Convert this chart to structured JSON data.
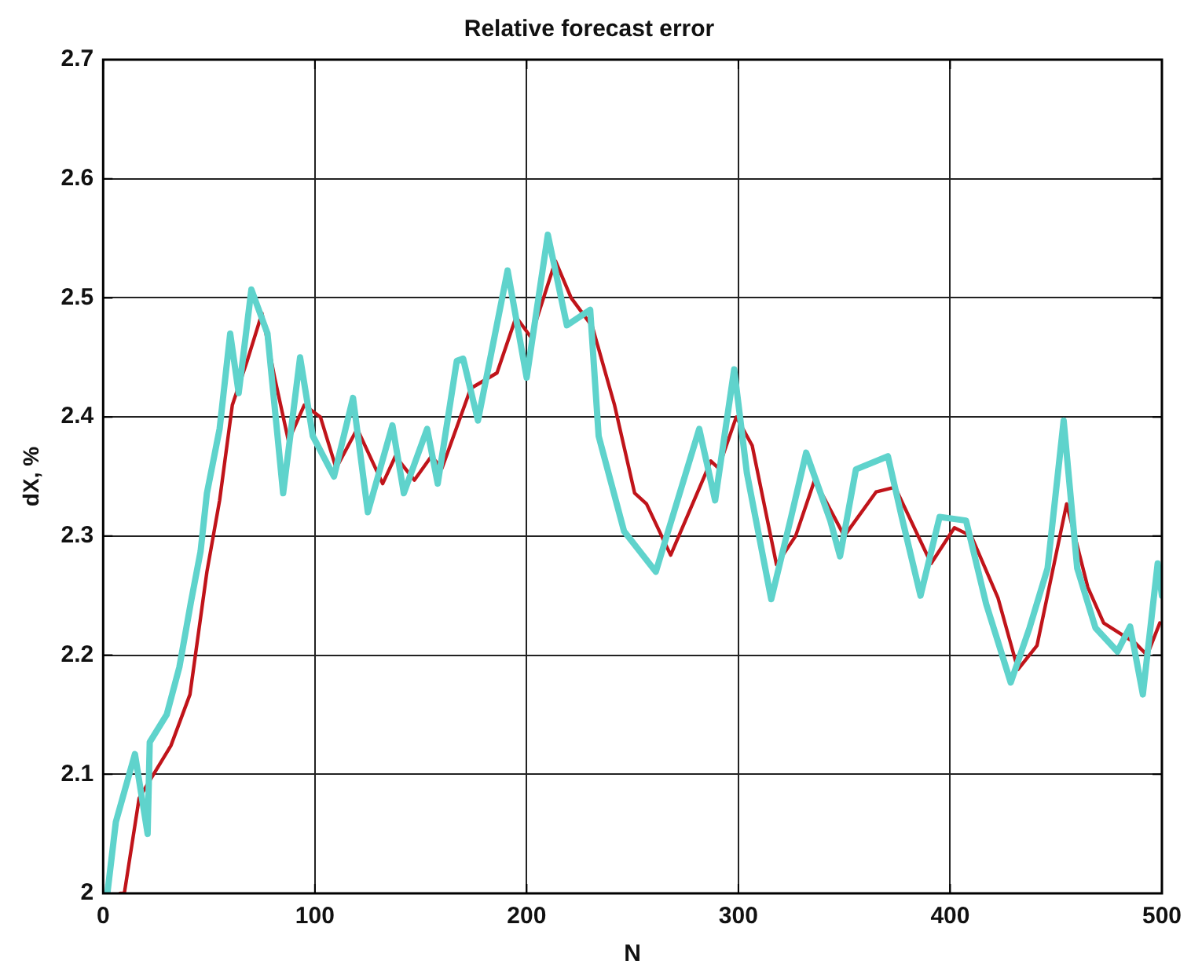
{
  "chart_data": {
    "type": "line",
    "title": "Relative forecast error",
    "xlabel": "N",
    "ylabel": "dX, %",
    "xlim": [
      0,
      500
    ],
    "xticks": [
      0,
      100,
      200,
      300,
      400,
      500
    ],
    "ylim": [
      2,
      2.7
    ],
    "yticks": [
      2,
      2.1,
      2.2,
      2.3,
      2.4,
      2.5,
      2.6,
      2.7
    ],
    "grid": true,
    "marker": "none",
    "line_style": "solid",
    "series": [
      {
        "color": "#5fd3cc",
        "x": [
          2,
          6,
          15,
          21,
          22,
          30,
          36,
          41.5,
          46,
          49,
          55,
          60,
          64,
          70,
          77.6,
          85,
          93,
          99,
          109,
          118,
          125,
          136.6,
          142,
          153,
          158,
          167,
          170,
          177,
          191,
          200,
          210,
          219,
          230,
          234,
          246,
          261,
          281.5,
          289,
          298,
          304,
          315.5,
          324.5,
          332,
          343.4,
          348,
          355.5,
          370.6,
          377,
          386,
          395,
          407.5,
          417,
          428.6,
          437.5,
          446,
          453.6,
          460,
          468.6,
          479,
          485,
          491,
          498,
          500
        ],
        "values": [
          2.0,
          2.06,
          2.117,
          2.05,
          2.127,
          2.15,
          2.19,
          2.245,
          2.287,
          2.336,
          2.39,
          2.47,
          2.42,
          2.507,
          2.47,
          2.336,
          2.45,
          2.384,
          2.35,
          2.416,
          2.32,
          2.393,
          2.336,
          2.39,
          2.344,
          2.447,
          2.449,
          2.397,
          2.523,
          2.433,
          2.553,
          2.477,
          2.49,
          2.384,
          2.304,
          2.27,
          2.39,
          2.33,
          2.44,
          2.353,
          2.247,
          2.313,
          2.37,
          2.313,
          2.283,
          2.356,
          2.367,
          2.317,
          2.25,
          2.316,
          2.313,
          2.243,
          2.177,
          2.223,
          2.273,
          2.397,
          2.273,
          2.223,
          2.203,
          2.224,
          2.167,
          2.277,
          2.25
        ]
      },
      {
        "color": "#c0141a",
        "x": [
          8,
          10,
          17,
          32,
          41,
          49,
          55,
          61,
          68,
          75,
          81,
          87.5,
          95,
          102.6,
          110,
          120,
          132,
          138,
          147,
          155,
          160,
          173.6,
          186,
          195,
          202,
          213.6,
          221,
          231,
          241.5,
          251,
          256.6,
          268,
          287,
          290.6,
          299,
          306.5,
          318,
          327,
          336,
          350,
          365,
          374,
          391,
          402,
          410,
          422.6,
          432,
          441,
          455,
          465,
          472.5,
          487.5,
          493,
          499
        ],
        "values": [
          2.0,
          2.0,
          2.08,
          2.124,
          2.167,
          2.27,
          2.33,
          2.41,
          2.447,
          2.487,
          2.433,
          2.38,
          2.41,
          2.4,
          2.357,
          2.39,
          2.344,
          2.367,
          2.347,
          2.367,
          2.357,
          2.424,
          2.437,
          2.484,
          2.467,
          2.531,
          2.5,
          2.476,
          2.41,
          2.336,
          2.327,
          2.284,
          2.363,
          2.357,
          2.4,
          2.376,
          2.276,
          2.3,
          2.347,
          2.3,
          2.337,
          2.341,
          2.277,
          2.307,
          2.3,
          2.248,
          2.188,
          2.208,
          2.327,
          2.257,
          2.227,
          2.21,
          2.2,
          2.227
        ]
      }
    ]
  }
}
